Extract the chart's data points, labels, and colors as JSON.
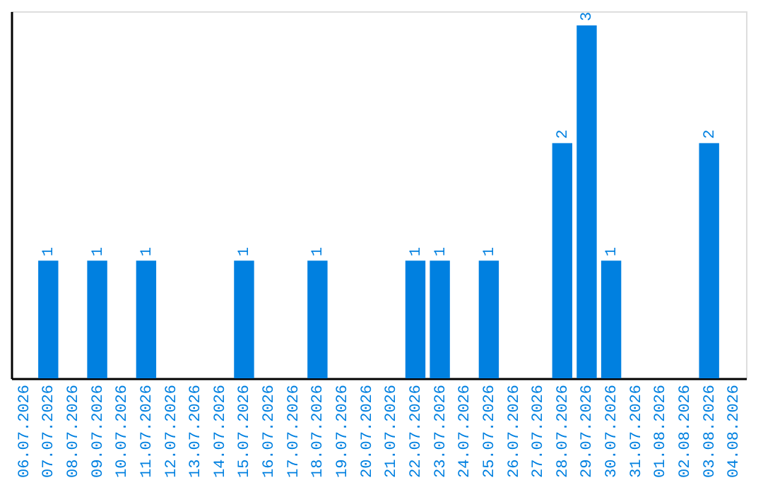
{
  "chart_data": {
    "type": "bar",
    "categories": [
      "06.07.2026",
      "07.07.2026",
      "08.07.2026",
      "09.07.2026",
      "10.07.2026",
      "11.07.2026",
      "12.07.2026",
      "13.07.2026",
      "14.07.2026",
      "15.07.2026",
      "16.07.2026",
      "17.07.2026",
      "18.07.2026",
      "19.07.2026",
      "20.07.2026",
      "21.07.2026",
      "22.07.2026",
      "23.07.2026",
      "24.07.2026",
      "25.07.2026",
      "26.07.2026",
      "27.07.2026",
      "28.07.2026",
      "29.07.2026",
      "30.07.2026",
      "31.07.2026",
      "01.08.2026",
      "02.08.2026",
      "03.08.2026",
      "04.08.2026"
    ],
    "values": [
      0,
      1,
      0,
      1,
      0,
      1,
      0,
      0,
      0,
      1,
      0,
      0,
      1,
      0,
      0,
      0,
      1,
      1,
      0,
      1,
      0,
      0,
      2,
      3,
      1,
      0,
      0,
      0,
      2,
      0
    ],
    "value_labels": [
      null,
      "1",
      null,
      "1",
      null,
      "1",
      null,
      null,
      null,
      "1",
      null,
      null,
      "1",
      null,
      null,
      null,
      "1",
      "1",
      null,
      "1",
      null,
      null,
      "2",
      "3",
      "1",
      null,
      null,
      null,
      "2",
      null
    ],
    "color": "#0080e0"
  }
}
